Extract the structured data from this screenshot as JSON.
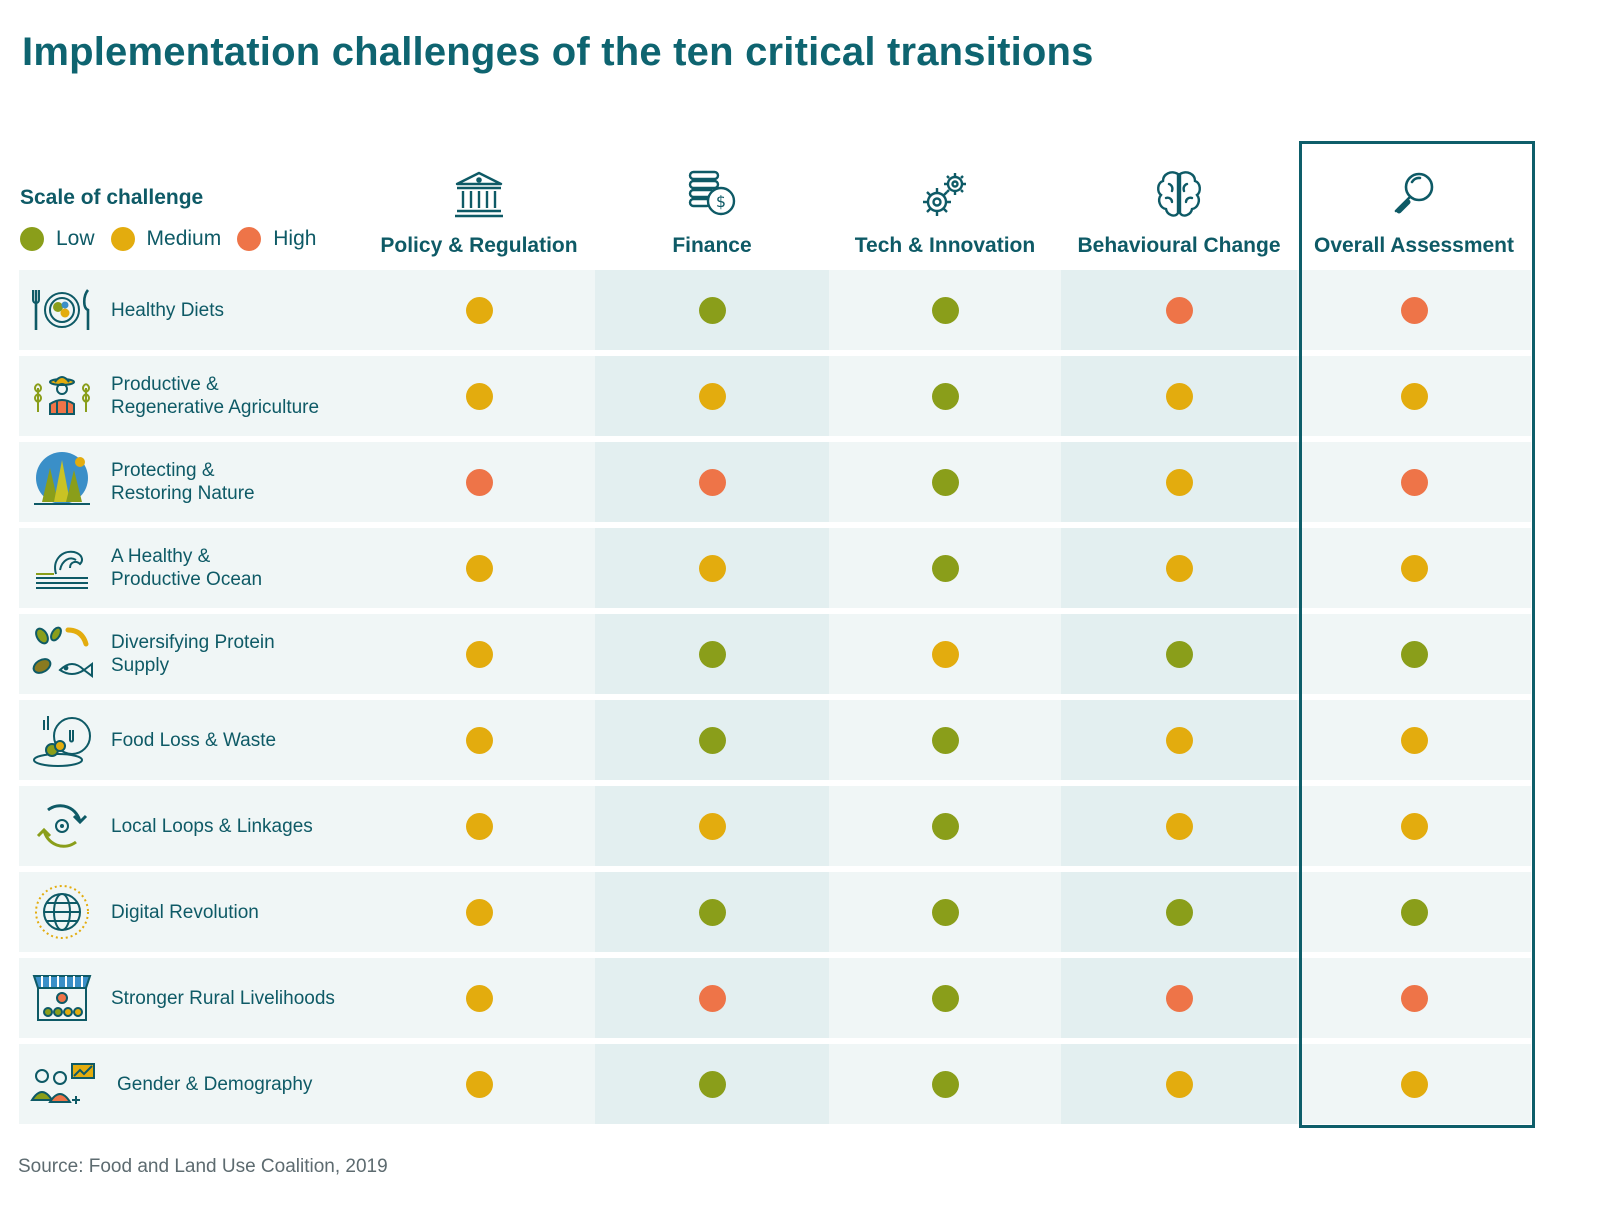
{
  "title": "Implementation challenges of the ten critical transitions",
  "legend": {
    "title": "Scale of challenge",
    "items": [
      {
        "label": "Low",
        "color": "#8a9e1a"
      },
      {
        "label": "Medium",
        "color": "#e3ac0e"
      },
      {
        "label": "High",
        "color": "#ee7448"
      }
    ]
  },
  "columns": [
    {
      "label": "Policy & Regulation",
      "icon": "bank-icon"
    },
    {
      "label": "Finance",
      "icon": "coins-icon"
    },
    {
      "label": "Tech & Innovation",
      "icon": "gears-icon"
    },
    {
      "label": "Behavioural Change",
      "icon": "brain-icon"
    },
    {
      "label": "Overall Assessment",
      "icon": "magnifier-icon"
    }
  ],
  "rows": [
    {
      "label": "Healthy Diets",
      "icon": "plate-cutlery-icon"
    },
    {
      "label": "Productive & Regenerative Agriculture",
      "icon": "farmer-icon"
    },
    {
      "label": "Protecting & Restoring Nature",
      "icon": "forest-icon"
    },
    {
      "label": "A Healthy & Productive Ocean",
      "icon": "wave-icon"
    },
    {
      "label": "Diversifying Protein Supply",
      "icon": "protein-icon"
    },
    {
      "label": "Food Loss & Waste",
      "icon": "food-waste-icon"
    },
    {
      "label": "Local Loops & Linkages",
      "icon": "loop-icon"
    },
    {
      "label": "Digital Revolution",
      "icon": "globe-icon"
    },
    {
      "label": "Stronger Rural Livelihoods",
      "icon": "market-stall-icon"
    },
    {
      "label": "Gender & Demography",
      "icon": "people-icon"
    }
  ],
  "chart_data": {
    "type": "table",
    "title": "Implementation challenges of the ten critical transitions",
    "categories": [
      "Policy & Regulation",
      "Finance",
      "Tech & Innovation",
      "Behavioural Change",
      "Overall Assessment"
    ],
    "scale": [
      "Low",
      "Medium",
      "High"
    ],
    "rows": [
      {
        "transition": "Healthy Diets",
        "values": [
          "Medium",
          "Low",
          "Low",
          "High",
          "High"
        ]
      },
      {
        "transition": "Productive & Regenerative Agriculture",
        "values": [
          "Medium",
          "Medium",
          "Low",
          "Medium",
          "Medium"
        ]
      },
      {
        "transition": "Protecting & Restoring Nature",
        "values": [
          "High",
          "High",
          "Low",
          "Medium",
          "High"
        ]
      },
      {
        "transition": "A Healthy & Productive Ocean",
        "values": [
          "Medium",
          "Medium",
          "Low",
          "Medium",
          "Medium"
        ]
      },
      {
        "transition": "Diversifying Protein Supply",
        "values": [
          "Medium",
          "Low",
          "Medium",
          "Low",
          "Low"
        ]
      },
      {
        "transition": "Food Loss & Waste",
        "values": [
          "Medium",
          "Low",
          "Low",
          "Medium",
          "Medium"
        ]
      },
      {
        "transition": "Local Loops & Linkages",
        "values": [
          "Medium",
          "Medium",
          "Low",
          "Medium",
          "Medium"
        ]
      },
      {
        "transition": "Digital Revolution",
        "values": [
          "Medium",
          "Low",
          "Low",
          "Low",
          "Low"
        ]
      },
      {
        "transition": "Stronger Rural Livelihoods",
        "values": [
          "Medium",
          "High",
          "Low",
          "High",
          "High"
        ]
      },
      {
        "transition": "Gender & Demography",
        "values": [
          "Medium",
          "Low",
          "Low",
          "Medium",
          "Medium"
        ]
      }
    ]
  },
  "colors": {
    "Low": "#8a9e1a",
    "Medium": "#e3ac0e",
    "High": "#ee7448",
    "row_light": "#f0f6f6",
    "row_dark": "#e3eff0",
    "accent": "#0e5e6a"
  },
  "source": "Source: Food and Land Use Coalition, 2019"
}
